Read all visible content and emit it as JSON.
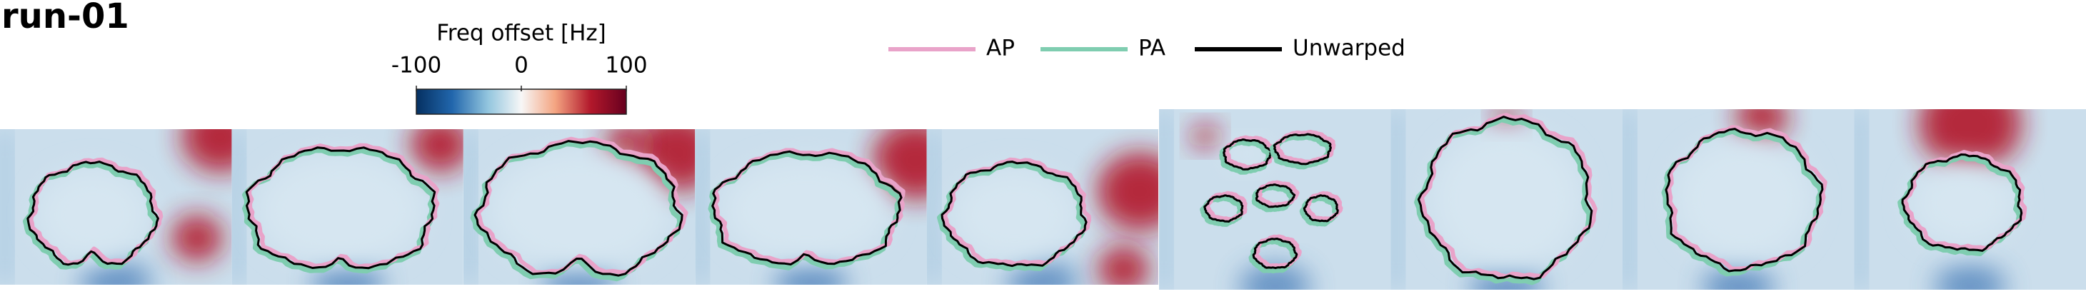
{
  "header": {
    "title": "run-01"
  },
  "colorbar": {
    "label": "Freq offset [Hz]",
    "lim": [
      -100,
      100
    ],
    "ticks": [
      -100,
      0,
      100
    ]
  },
  "legend": [
    {
      "name": "AP",
      "color": "#e9a3c9"
    },
    {
      "name": "PA",
      "color": "#7fcdb0"
    },
    {
      "name": "Unwarped",
      "color": "#000000"
    }
  ]
}
